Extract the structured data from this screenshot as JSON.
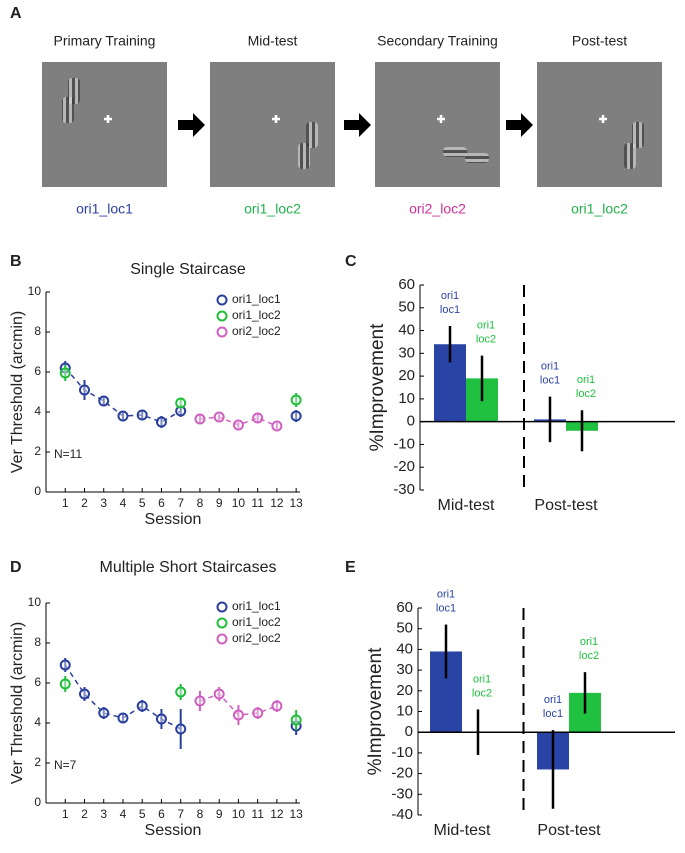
{
  "figure_a": {
    "panel_label": "A",
    "steps": [
      {
        "title": "Primary Training",
        "condition": "ori1_loc1",
        "color": "#2b3f9e"
      },
      {
        "title": "Mid-test",
        "condition": "ori1_loc2",
        "color": "#22b14c"
      },
      {
        "title": "Secondary Training",
        "condition": "ori2_loc2",
        "color": "#d0309a"
      },
      {
        "title": "Post-test",
        "condition": "ori1_loc2",
        "color": "#22b14c"
      }
    ]
  },
  "chart_data": [
    {
      "type": "errorbar",
      "panel_label": "B",
      "title": "Single Staircase",
      "xlabel": "Session",
      "ylabel": "Ver Threshold (arcmin)",
      "annotation": "N=11",
      "x": [
        1,
        2,
        3,
        4,
        5,
        6,
        7,
        8,
        9,
        10,
        11,
        12,
        13
      ],
      "xlim": [
        0,
        13.2
      ],
      "xticks": [
        1,
        2,
        3,
        4,
        5,
        6,
        7,
        8,
        9,
        10,
        11,
        12,
        13
      ],
      "ylim": [
        0,
        10
      ],
      "yticks": [
        0,
        2,
        4,
        6,
        8,
        10
      ],
      "legend": "upper right",
      "series": [
        {
          "name": "ori1_loc1",
          "color": "#2a3f9d",
          "linestyle": "dashed",
          "values": [
            6.2,
            5.1,
            4.55,
            3.8,
            3.85,
            3.5,
            4.05,
            null,
            null,
            null,
            null,
            null,
            3.8
          ],
          "errors": [
            0.35,
            0.5,
            0.25,
            0.2,
            0.2,
            0.3,
            0.3,
            null,
            null,
            null,
            null,
            null,
            0.3
          ]
        },
        {
          "name": "ori1_loc2",
          "color": "#1fbf3a",
          "linestyle": "none",
          "values": [
            5.95,
            null,
            null,
            null,
            null,
            null,
            4.45,
            null,
            null,
            null,
            null,
            null,
            4.6
          ],
          "errors": [
            0.4,
            null,
            null,
            null,
            null,
            null,
            0.25,
            null,
            null,
            null,
            null,
            null,
            0.35
          ]
        },
        {
          "name": "ori2_loc2",
          "color": "#d060c0",
          "linestyle": "dashed",
          "values": [
            null,
            null,
            null,
            null,
            null,
            null,
            null,
            3.65,
            3.75,
            3.35,
            3.7,
            3.3,
            null
          ],
          "errors": [
            null,
            null,
            null,
            null,
            null,
            null,
            null,
            0.2,
            0.15,
            0.15,
            0.2,
            0.15,
            null
          ]
        }
      ]
    },
    {
      "type": "bar",
      "panel_label": "C",
      "ylabel": "%Improvement",
      "categories": [
        "Mid-test",
        "Post-test"
      ],
      "ylim": [
        -30,
        60
      ],
      "yticks": [
        -30,
        -20,
        -10,
        0,
        10,
        20,
        30,
        40,
        50,
        60
      ],
      "series": [
        {
          "name_lines": [
            "ori1",
            "loc1"
          ],
          "color": "#2a44a6",
          "values": [
            34,
            1
          ],
          "errors": [
            8,
            10
          ]
        },
        {
          "name_lines": [
            "ori1",
            "loc2"
          ],
          "color": "#20c040",
          "values": [
            19,
            -4
          ],
          "errors": [
            10,
            9
          ]
        }
      ]
    },
    {
      "type": "errorbar",
      "panel_label": "D",
      "title": "Multiple Short Staircases",
      "xlabel": "Session",
      "ylabel": "Ver Threshold (arcmin)",
      "annotation": "N=7",
      "x": [
        1,
        2,
        3,
        4,
        5,
        6,
        7,
        8,
        9,
        10,
        11,
        12,
        13
      ],
      "xlim": [
        0,
        13.2
      ],
      "xticks": [
        1,
        2,
        3,
        4,
        5,
        6,
        7,
        8,
        9,
        10,
        11,
        12,
        13
      ],
      "ylim": [
        0,
        10
      ],
      "yticks": [
        0,
        2,
        4,
        6,
        8,
        10
      ],
      "legend": "upper right",
      "series": [
        {
          "name": "ori1_loc1",
          "color": "#2a3f9d",
          "linestyle": "dashed",
          "values": [
            6.9,
            5.45,
            4.5,
            4.25,
            4.85,
            4.2,
            3.7,
            null,
            null,
            null,
            null,
            null,
            3.85
          ],
          "errors": [
            0.35,
            0.35,
            0.3,
            0.25,
            0.3,
            0.5,
            1.0,
            null,
            null,
            null,
            null,
            null,
            0.45
          ]
        },
        {
          "name": "ori1_loc2",
          "color": "#1fbf3a",
          "linestyle": "none",
          "values": [
            5.95,
            null,
            null,
            null,
            null,
            null,
            5.55,
            null,
            null,
            null,
            null,
            null,
            4.15
          ],
          "errors": [
            0.4,
            null,
            null,
            null,
            null,
            null,
            0.4,
            null,
            null,
            null,
            null,
            null,
            0.5
          ]
        },
        {
          "name": "ori2_loc2",
          "color": "#d060c0",
          "linestyle": "dashed",
          "values": [
            null,
            null,
            null,
            null,
            null,
            null,
            null,
            5.1,
            5.45,
            4.4,
            4.5,
            4.85,
            null
          ],
          "errors": [
            null,
            null,
            null,
            null,
            null,
            null,
            null,
            0.5,
            0.35,
            0.5,
            0.3,
            0.3,
            null
          ]
        }
      ]
    },
    {
      "type": "bar",
      "panel_label": "E",
      "ylabel": "%Improvement",
      "categories": [
        "Mid-test",
        "Post-test"
      ],
      "ylim": [
        -40,
        60
      ],
      "yticks": [
        -40,
        -30,
        -20,
        -10,
        0,
        10,
        20,
        30,
        40,
        50,
        60
      ],
      "series": [
        {
          "name_lines": [
            "ori1",
            "loc1"
          ],
          "color": "#2a44a6",
          "values": [
            39,
            -18
          ],
          "errors": [
            13,
            19
          ]
        },
        {
          "name_lines": [
            "ori1",
            "loc2"
          ],
          "color": "#20c040",
          "values": [
            0,
            19
          ],
          "errors": [
            11,
            10
          ]
        }
      ]
    }
  ]
}
